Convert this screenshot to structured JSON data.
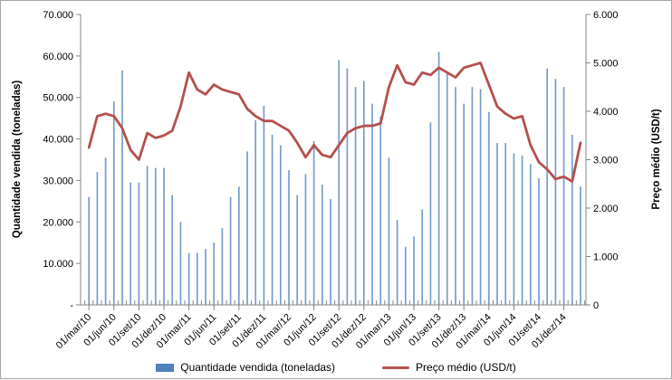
{
  "chart_data": {
    "type": "combo",
    "title": "",
    "categories": [
      "mar/10",
      "abr/10",
      "mai/10",
      "jun/10",
      "jul/10",
      "ago/10",
      "set/10",
      "out/10",
      "nov/10",
      "dez/10",
      "jan/11",
      "fev/11",
      "mar/11",
      "abr/11",
      "mai/11",
      "jun/11",
      "jul/11",
      "ago/11",
      "set/11",
      "out/11",
      "nov/11",
      "dez/11",
      "jan/12",
      "fev/12",
      "mar/12",
      "abr/12",
      "mai/12",
      "jun/12",
      "jul/12",
      "ago/12",
      "set/12",
      "out/12",
      "nov/12",
      "dez/12",
      "jan/13",
      "fev/13",
      "mar/13",
      "abr/13",
      "mai/13",
      "jun/13",
      "jul/13",
      "ago/13",
      "set/13",
      "out/13",
      "nov/13",
      "dez/13",
      "jan/14",
      "fev/14",
      "mar/14",
      "abr/14",
      "mai/14",
      "jun/14",
      "jul/14",
      "ago/14",
      "set/14",
      "out/14",
      "nov/14",
      "dez/14",
      "jan/15",
      "fev/15"
    ],
    "x_tick_labels": [
      "01/mar/10",
      "01/jun/10",
      "01/set/10",
      "01/dez/10",
      "01/mar/11",
      "01/jun/11",
      "01/set/11",
      "01/dez/11",
      "01/mar/12",
      "01/jun/12",
      "01/set/12",
      "01/dez/12",
      "01/mar/13",
      "01/jun/13",
      "01/set/13",
      "01/dez/13",
      "01/mar/14",
      "01/jun/14",
      "01/set/14",
      "01/dez/14"
    ],
    "x_tick_every": 3,
    "series": [
      {
        "name": "Quantidade vendida (toneladas)",
        "type": "bar",
        "axis": "left",
        "color": "#4F81BD",
        "values": [
          26000,
          32000,
          35500,
          49000,
          56500,
          29500,
          29500,
          33500,
          33000,
          33000,
          26500,
          20000,
          12500,
          12500,
          13500,
          15000,
          18500,
          26000,
          28500,
          37000,
          44500,
          48000,
          41000,
          38500,
          32500,
          26500,
          31500,
          39500,
          29000,
          25500,
          59000,
          57000,
          52500,
          54000,
          48500,
          45500,
          35500,
          20500,
          14000,
          16500,
          23000,
          44000,
          61000,
          56000,
          52500,
          48500,
          52500,
          52000,
          46500,
          39000,
          39000,
          36500,
          36000,
          34000,
          30500,
          57000,
          54500,
          52500,
          41000,
          28500
        ]
      },
      {
        "name": "Preço médio (USD/t)",
        "type": "line",
        "axis": "right",
        "color": "#B4504E",
        "values": [
          3250,
          3900,
          3950,
          3900,
          3650,
          3200,
          3000,
          3550,
          3450,
          3500,
          3600,
          4100,
          4800,
          4450,
          4350,
          4550,
          4450,
          4400,
          4350,
          4050,
          3900,
          3800,
          3800,
          3700,
          3600,
          3350,
          3050,
          3300,
          3100,
          3050,
          3300,
          3550,
          3650,
          3700,
          3700,
          3750,
          4500,
          4950,
          4600,
          4550,
          4800,
          4750,
          4900,
          4800,
          4700,
          4900,
          4950,
          5000,
          4550,
          4100,
          3950,
          3850,
          3900,
          3300,
          2950,
          2800,
          2600,
          2650,
          2550,
          3350
        ]
      }
    ],
    "left_axis": {
      "label": "Quantidade vendida (toneladas)",
      "ticks": [
        "70.000",
        "60.000",
        "50.000",
        "40.000",
        "30.000",
        "20.000",
        "10.000",
        "-"
      ],
      "lim": [
        0,
        70000
      ]
    },
    "right_axis": {
      "label": "Preço médio (USD/t)",
      "ticks": [
        "6.000",
        "5.000",
        "4.000",
        "3.000",
        "2.000",
        "1.000",
        "0"
      ],
      "lim": [
        0,
        6000
      ]
    },
    "grid": false,
    "legend_position": "bottom"
  },
  "colors": {
    "axis": "#868686",
    "text": "#000000",
    "border": "#A6A6A6",
    "background": "#FFFFFF"
  }
}
